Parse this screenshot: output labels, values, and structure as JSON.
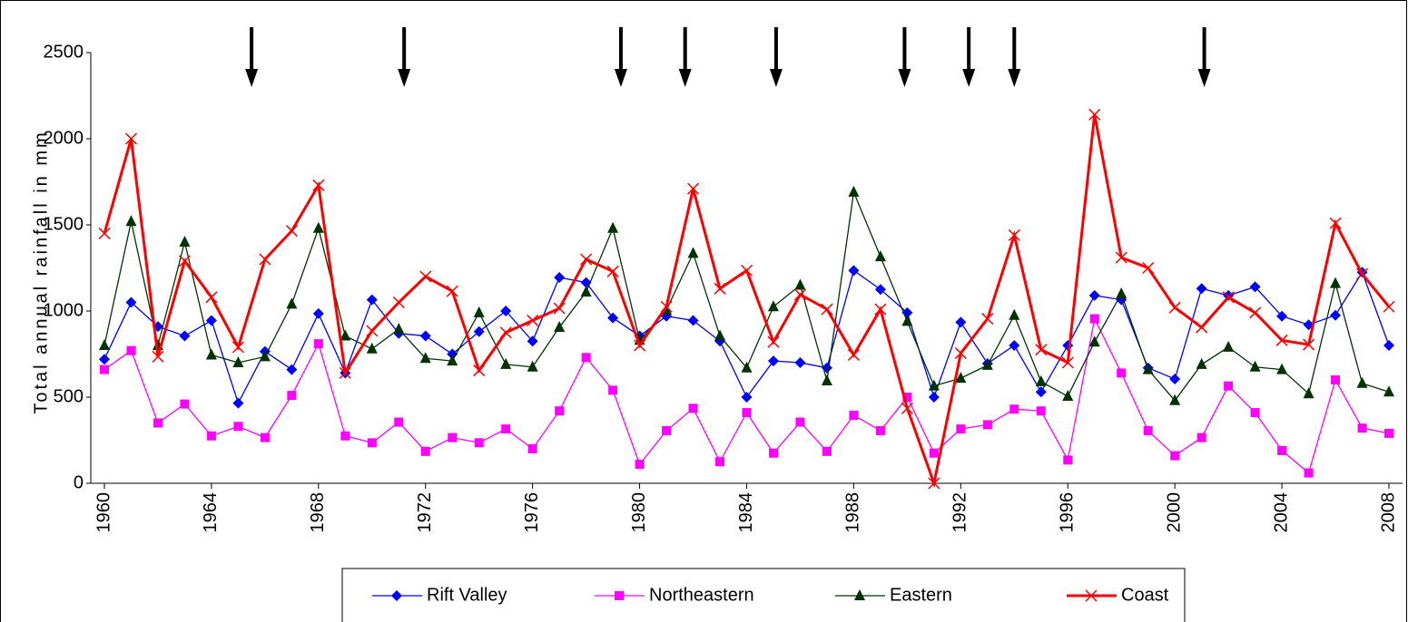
{
  "chart_data": {
    "type": "line",
    "y_label": "Total annual rainfall in mm",
    "x": [
      1960,
      1961,
      1962,
      1963,
      1964,
      1965,
      1966,
      1967,
      1968,
      1969,
      1970,
      1971,
      1972,
      1973,
      1974,
      1975,
      1976,
      1977,
      1978,
      1979,
      1980,
      1981,
      1982,
      1983,
      1984,
      1985,
      1986,
      1987,
      1988,
      1989,
      1990,
      1991,
      1992,
      1993,
      1994,
      1995,
      1996,
      1997,
      1998,
      1999,
      2000,
      2001,
      2002,
      2003,
      2004,
      2005,
      2006,
      2007,
      2008
    ],
    "xlim": [
      1960,
      2008
    ],
    "xticks": [
      1960,
      1964,
      1968,
      1972,
      1976,
      1980,
      1984,
      1988,
      1992,
      1996,
      2000,
      2004,
      2008
    ],
    "ylim": [
      0,
      2500
    ],
    "yticks": [
      0,
      500,
      1000,
      1500,
      2000,
      2500
    ],
    "annotation_arrows": [
      1965.5,
      1971.2,
      1979.3,
      1981.7,
      1985.1,
      1989.9,
      1992.3,
      1994,
      2001.1
    ],
    "series": [
      {
        "name": "Rift Valley",
        "color": "#0000ff",
        "marker": "diamond",
        "width": 1.3,
        "values": [
          720,
          1050,
          910,
          855,
          945,
          465,
          765,
          660,
          985,
          640,
          1065,
          870,
          855,
          750,
          880,
          1000,
          825,
          1195,
          1165,
          960,
          855,
          970,
          945,
          825,
          500,
          710,
          700,
          670,
          1235,
          1125,
          990,
          500,
          935,
          695,
          800,
          530,
          800,
          1090,
          1065,
          670,
          605,
          1130,
          1090,
          1140,
          970,
          920,
          975,
          1225,
          800
        ]
      },
      {
        "name": "Northeastern",
        "color": "#ff00ff",
        "marker": "square",
        "width": 1.3,
        "values": [
          660,
          770,
          350,
          460,
          275,
          330,
          265,
          510,
          810,
          275,
          235,
          355,
          185,
          265,
          235,
          315,
          200,
          420,
          730,
          540,
          110,
          305,
          435,
          125,
          410,
          175,
          355,
          185,
          395,
          305,
          500,
          175,
          315,
          340,
          430,
          420,
          135,
          955,
          640,
          305,
          160,
          265,
          565,
          410,
          190,
          60,
          600,
          320,
          290
        ]
      },
      {
        "name": "Eastern",
        "color": "#003300",
        "marker": "triangle",
        "width": 1.3,
        "values": [
          800,
          1520,
          800,
          1400,
          745,
          700,
          735,
          1040,
          1480,
          855,
          780,
          895,
          725,
          710,
          990,
          690,
          675,
          905,
          1110,
          1480,
          830,
          1005,
          1335,
          855,
          670,
          1025,
          1150,
          595,
          1690,
          1315,
          940,
          565,
          610,
          685,
          975,
          590,
          505,
          820,
          1100,
          660,
          480,
          690,
          790,
          675,
          660,
          520,
          1160,
          580,
          530
        ]
      },
      {
        "name": "Coast",
        "color": "#ff0000",
        "marker": "x",
        "width": 3,
        "values": [
          1450,
          2000,
          735,
          1290,
          1080,
          790,
          1300,
          1465,
          1730,
          640,
          885,
          1050,
          1200,
          1115,
          655,
          875,
          945,
          1015,
          1300,
          1230,
          800,
          1025,
          1710,
          1130,
          1235,
          820,
          1095,
          1010,
          745,
          1010,
          435,
          0,
          755,
          955,
          1440,
          775,
          700,
          2140,
          1310,
          1250,
          1020,
          905,
          1080,
          990,
          830,
          805,
          1510,
          1215,
          1025
        ]
      }
    ]
  }
}
